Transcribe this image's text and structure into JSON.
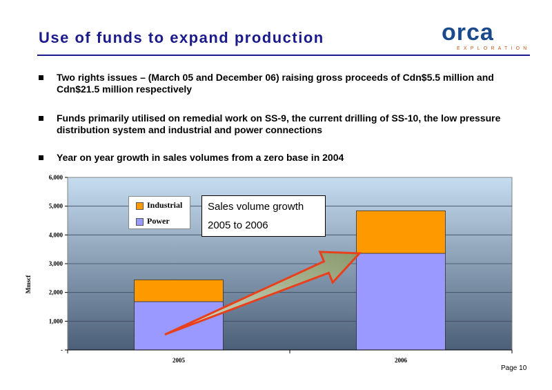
{
  "title": "Use of funds to expand production",
  "logo": {
    "word": "orca",
    "sub": "EXPLORATION"
  },
  "bullets": [
    {
      "text": "Two rights issues – (March 05 and December 06) raising gross proceeds of Cdn$5.5 million and Cdn$21.5 million respectively"
    },
    {
      "text": "Funds primarily utilised on remedial work on SS-9, the current drilling of SS-10, the low pressure distribution system and industrial and power connections"
    },
    {
      "text": "Year on year growth in sales volumes from a zero base in 2004"
    }
  ],
  "callout": {
    "line1": "Sales volume growth",
    "line2": "2005 to 2006"
  },
  "page_number": "Page 10",
  "colors": {
    "title": "#1a1a8c",
    "industrial": "#ff9900",
    "power": "#9999ff",
    "arrow_fill": "#8a9a6e",
    "arrow_stroke": "#e8401c"
  },
  "chart_data": {
    "type": "bar",
    "stacked": true,
    "categories": [
      "2005",
      "2006"
    ],
    "series": [
      {
        "name": "Power",
        "values": [
          1680,
          3360
        ],
        "color": "#9999ff"
      },
      {
        "name": "Industrial",
        "values": [
          760,
          1480
        ],
        "color": "#ff9900"
      }
    ],
    "ylabel": "Mmscf",
    "ylim": [
      0,
      6000
    ],
    "yticks": [
      0,
      1000,
      2000,
      3000,
      4000,
      5000,
      6000
    ],
    "ytick_labels": [
      "-",
      "1,000",
      "2,000",
      "3,000",
      "4,000",
      "5,000",
      "6,000"
    ],
    "grid": true,
    "legend": "top-left",
    "background": "gradient light blue to dark slate"
  }
}
